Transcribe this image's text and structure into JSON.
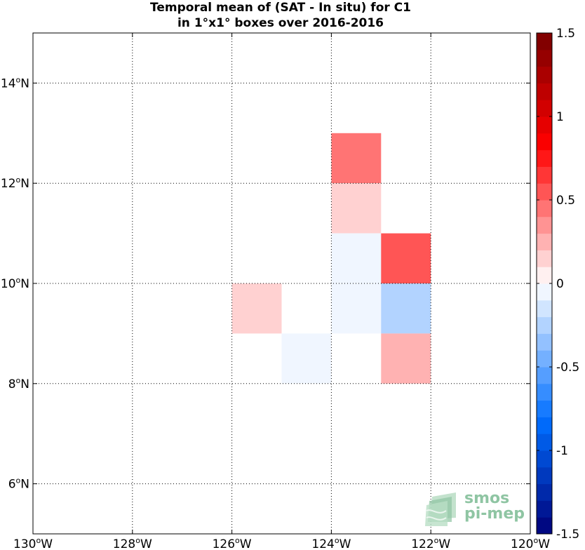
{
  "title_line1": "Temporal mean of (SAT - In situ) for C1",
  "title_line2": "in 1°x1° boxes over 2016-2016",
  "logo": {
    "line1": "smos",
    "line2": "pi-mep",
    "icon": "stacked-layers-icon",
    "color": "#8fc5a3"
  },
  "chart_data": {
    "type": "heatmap",
    "xlim": [
      -130,
      -120
    ],
    "ylim": [
      5,
      15
    ],
    "x_ticks": [
      {
        "value": -130,
        "deg": "130",
        "suffix": "W"
      },
      {
        "value": -128,
        "deg": "128",
        "suffix": "W"
      },
      {
        "value": -126,
        "deg": "126",
        "suffix": "W"
      },
      {
        "value": -124,
        "deg": "124",
        "suffix": "W"
      },
      {
        "value": -122,
        "deg": "122",
        "suffix": "W"
      },
      {
        "value": -120,
        "deg": "120",
        "suffix": "W"
      }
    ],
    "y_ticks": [
      {
        "value": 6,
        "deg": "6",
        "suffix": "N"
      },
      {
        "value": 8,
        "deg": "8",
        "suffix": "N"
      },
      {
        "value": 10,
        "deg": "10",
        "suffix": "N"
      },
      {
        "value": 12,
        "deg": "12",
        "suffix": "N"
      },
      {
        "value": 14,
        "deg": "14",
        "suffix": "N"
      }
    ],
    "grid": true,
    "cells": [
      {
        "lon": -124,
        "lat": 12,
        "value": 0.45
      },
      {
        "lon": -124,
        "lat": 11,
        "value": 0.12
      },
      {
        "lon": -124,
        "lat": 10,
        "value": -0.08
      },
      {
        "lon": -124,
        "lat": 9,
        "value": -0.08
      },
      {
        "lon": -123,
        "lat": 10,
        "value": 0.5
      },
      {
        "lon": -123,
        "lat": 9,
        "value": -0.22
      },
      {
        "lon": -123,
        "lat": 8,
        "value": 0.28
      },
      {
        "lon": -126,
        "lat": 9,
        "value": 0.12
      },
      {
        "lon": -125,
        "lat": 8,
        "value": -0.08
      }
    ],
    "colorbar": {
      "range": [
        -1.5,
        1.5
      ],
      "levels": 30,
      "ticks": [
        {
          "value": -1.5,
          "label": "-1.5"
        },
        {
          "value": -1,
          "label": "-1"
        },
        {
          "value": -0.5,
          "label": "-0.5"
        },
        {
          "value": 0,
          "label": "0"
        },
        {
          "value": 0.5,
          "label": "0.5"
        },
        {
          "value": 1,
          "label": "1"
        },
        {
          "value": 1.5,
          "label": "1.5"
        }
      ]
    }
  }
}
